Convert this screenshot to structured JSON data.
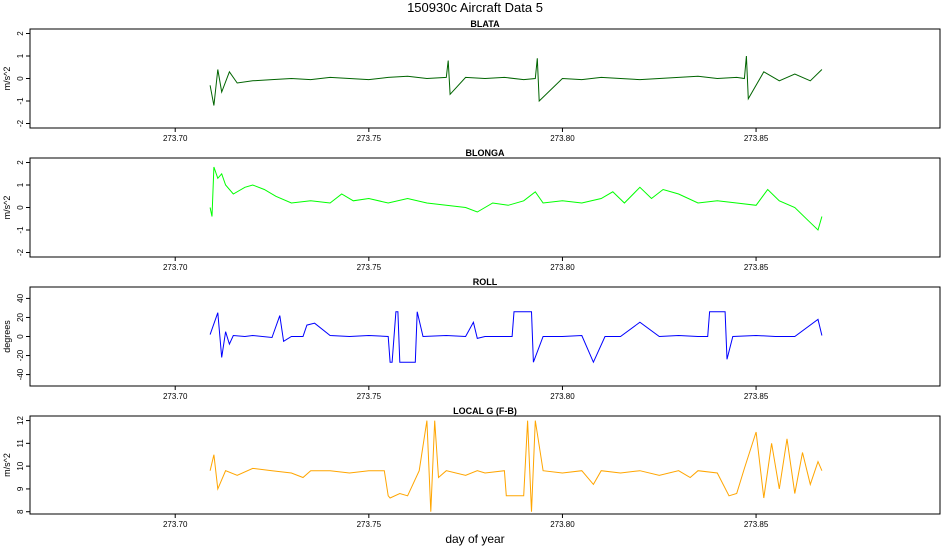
{
  "figure": {
    "title": "150930c   Aircraft Data 5",
    "xlabel": "day of year"
  },
  "chart_data": [
    {
      "type": "line",
      "title": "BLATA",
      "ylabel": "m/s^2",
      "color": "#006400",
      "xlim": [
        273.6625,
        273.8975
      ],
      "ylim": [
        -2.2,
        2.2
      ],
      "xticks": [
        273.7,
        273.75,
        273.8,
        273.85
      ],
      "xtick_labels": [
        "273.70",
        "273.75",
        "273.80",
        "273.85"
      ],
      "yticks": [
        -2,
        -1,
        0,
        1,
        2
      ],
      "ytick_labels": [
        "-2",
        "-1",
        "0",
        "1",
        "2"
      ],
      "x": [
        273.709,
        273.71,
        273.711,
        273.712,
        273.714,
        273.716,
        273.72,
        273.725,
        273.73,
        273.735,
        273.74,
        273.745,
        273.75,
        273.755,
        273.76,
        273.765,
        273.77,
        273.7705,
        273.771,
        273.775,
        273.78,
        273.785,
        273.79,
        273.793,
        273.7935,
        273.794,
        273.8,
        273.805,
        273.81,
        273.815,
        273.82,
        273.825,
        273.83,
        273.835,
        273.84,
        273.845,
        273.847,
        273.8475,
        273.848,
        273.852,
        273.856,
        273.86,
        273.864,
        273.867
      ],
      "y": [
        -0.3,
        -1.2,
        0.4,
        -0.6,
        0.3,
        -0.2,
        -0.1,
        -0.05,
        0.0,
        -0.05,
        0.05,
        0.0,
        -0.05,
        0.05,
        0.1,
        0.0,
        0.05,
        0.8,
        -0.7,
        0.05,
        0.0,
        0.05,
        -0.05,
        0.0,
        0.9,
        -1.0,
        0.0,
        -0.05,
        0.05,
        0.0,
        -0.05,
        0.0,
        0.05,
        0.1,
        0.0,
        0.05,
        0.0,
        1.0,
        -0.9,
        0.3,
        -0.1,
        0.2,
        -0.1,
        0.4
      ]
    },
    {
      "type": "line",
      "title": "BLONGA",
      "ylabel": "m/s^2",
      "color": "#00ff00",
      "xlim": [
        273.6625,
        273.8975
      ],
      "ylim": [
        -2.2,
        2.2
      ],
      "xticks": [
        273.7,
        273.75,
        273.8,
        273.85
      ],
      "xtick_labels": [
        "273.70",
        "273.75",
        "273.80",
        "273.85"
      ],
      "yticks": [
        -2,
        -1,
        0,
        1,
        2
      ],
      "ytick_labels": [
        "-2",
        "-1",
        "0",
        "1",
        "2"
      ],
      "x": [
        273.709,
        273.7095,
        273.71,
        273.711,
        273.712,
        273.713,
        273.715,
        273.718,
        273.72,
        273.723,
        273.726,
        273.73,
        273.735,
        273.74,
        273.743,
        273.746,
        273.75,
        273.755,
        273.76,
        273.765,
        273.77,
        273.775,
        273.778,
        273.782,
        273.786,
        273.79,
        273.793,
        273.795,
        273.8,
        273.805,
        273.81,
        273.813,
        273.816,
        273.82,
        273.823,
        273.826,
        273.83,
        273.835,
        273.84,
        273.845,
        273.85,
        273.853,
        273.856,
        273.86,
        273.863,
        273.866,
        273.867
      ],
      "y": [
        0.0,
        -0.4,
        1.8,
        1.3,
        1.5,
        1.0,
        0.6,
        0.9,
        1.0,
        0.8,
        0.5,
        0.2,
        0.3,
        0.2,
        0.6,
        0.3,
        0.4,
        0.2,
        0.4,
        0.2,
        0.1,
        0.0,
        -0.2,
        0.2,
        0.1,
        0.3,
        0.7,
        0.2,
        0.3,
        0.2,
        0.4,
        0.7,
        0.2,
        0.9,
        0.4,
        0.8,
        0.6,
        0.2,
        0.3,
        0.2,
        0.1,
        0.8,
        0.3,
        0.0,
        -0.5,
        -1.0,
        -0.4
      ]
    },
    {
      "type": "line",
      "title": "ROLL",
      "ylabel": "degrees",
      "color": "#0000ff",
      "xlim": [
        273.6625,
        273.8975
      ],
      "ylim": [
        -52,
        52
      ],
      "xticks": [
        273.7,
        273.75,
        273.8,
        273.85
      ],
      "xtick_labels": [
        "273.70",
        "273.75",
        "273.80",
        "273.85"
      ],
      "yticks": [
        -40,
        -20,
        0,
        20,
        40
      ],
      "ytick_labels": [
        "-40",
        "-20",
        "0",
        "20",
        "40"
      ],
      "x": [
        273.709,
        273.711,
        273.712,
        273.713,
        273.714,
        273.715,
        273.718,
        273.72,
        273.725,
        273.727,
        273.728,
        273.73,
        273.733,
        273.734,
        273.736,
        273.74,
        273.745,
        273.75,
        273.755,
        273.7555,
        273.756,
        273.757,
        273.7575,
        273.758,
        273.76,
        273.762,
        273.7625,
        273.764,
        273.77,
        273.775,
        273.777,
        273.778,
        273.78,
        273.785,
        273.787,
        273.7875,
        273.79,
        273.792,
        273.7925,
        273.795,
        273.8,
        273.805,
        273.808,
        273.811,
        273.815,
        273.82,
        273.825,
        273.83,
        273.835,
        273.8375,
        273.838,
        273.842,
        273.8425,
        273.844,
        273.85,
        273.855,
        273.86,
        273.866,
        273.867
      ],
      "y": [
        2,
        25,
        -22,
        5,
        -8,
        1,
        0,
        1,
        -1,
        22,
        -5,
        0,
        0,
        12,
        14,
        1,
        0,
        1,
        0,
        -27,
        -27,
        26,
        26,
        -27,
        -27,
        -27,
        26,
        0,
        1,
        0,
        15,
        -2,
        0,
        0,
        0,
        26,
        26,
        26,
        -27,
        0,
        0,
        1,
        -27,
        0,
        0,
        15,
        0,
        1,
        0,
        0,
        26,
        26,
        -24,
        0,
        1,
        0,
        0,
        18,
        1
      ]
    },
    {
      "type": "line",
      "title": "LOCAL G (F-B)",
      "ylabel": "m/s^2",
      "color": "#ffa500",
      "xlim": [
        273.6625,
        273.8975
      ],
      "ylim": [
        7.9,
        12.2
      ],
      "xticks": [
        273.7,
        273.75,
        273.8,
        273.85
      ],
      "xtick_labels": [
        "273.70",
        "273.75",
        "273.80",
        "273.85"
      ],
      "yticks": [
        8,
        9,
        10,
        11,
        12
      ],
      "ytick_labels": [
        "8",
        "9",
        "10",
        "11",
        "12"
      ],
      "x": [
        273.709,
        273.71,
        273.711,
        273.713,
        273.716,
        273.72,
        273.725,
        273.73,
        273.733,
        273.735,
        273.74,
        273.745,
        273.75,
        273.754,
        273.755,
        273.7555,
        273.758,
        273.76,
        273.763,
        273.765,
        273.766,
        273.767,
        273.768,
        273.77,
        273.775,
        273.778,
        273.78,
        273.785,
        273.7855,
        273.79,
        273.791,
        273.792,
        273.793,
        273.795,
        273.8,
        273.805,
        273.808,
        273.81,
        273.815,
        273.82,
        273.825,
        273.83,
        273.833,
        273.835,
        273.84,
        273.843,
        273.845,
        273.847,
        273.85,
        273.852,
        273.854,
        273.856,
        273.858,
        273.86,
        273.862,
        273.864,
        273.866,
        273.867
      ],
      "y": [
        9.8,
        10.5,
        9.0,
        9.8,
        9.6,
        9.9,
        9.8,
        9.7,
        9.5,
        9.8,
        9.8,
        9.7,
        9.8,
        9.8,
        8.7,
        8.6,
        8.8,
        8.7,
        9.8,
        12.0,
        8.0,
        12.0,
        9.5,
        9.8,
        9.6,
        9.8,
        9.7,
        9.8,
        8.7,
        8.7,
        12.0,
        8.0,
        12.0,
        9.8,
        9.7,
        9.8,
        9.2,
        9.8,
        9.7,
        9.8,
        9.6,
        9.8,
        9.5,
        9.8,
        9.7,
        8.7,
        8.8,
        9.9,
        11.5,
        8.6,
        11.0,
        9.0,
        11.2,
        8.8,
        10.6,
        9.2,
        10.2,
        9.8
      ]
    }
  ]
}
